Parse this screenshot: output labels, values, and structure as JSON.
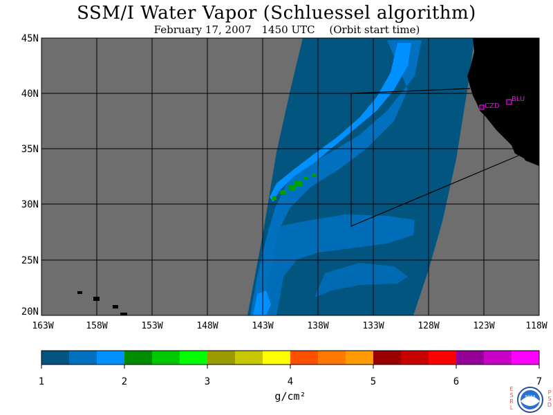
{
  "header": {
    "title": "SSM/I Water Vapor (Schluessel algorithm)",
    "date": "February 17, 2007",
    "time": "1450 UTC",
    "orbit_note": "(Orbit start time)"
  },
  "map": {
    "lat_labels": [
      "45N",
      "40N",
      "35N",
      "30N",
      "25N",
      "20N"
    ],
    "lon_labels": [
      "163W",
      "158W",
      "153W",
      "148W",
      "143W",
      "138W",
      "133W",
      "128W",
      "123W",
      "118W"
    ],
    "stations": [
      {
        "id": "CZD",
        "label": "CZD"
      },
      {
        "id": "BLU",
        "label": "BLU"
      }
    ],
    "colors": {
      "land": "#000000",
      "no_data": "#6e6e6e",
      "swath_base": "#02557f",
      "moist_band": "#0070bf",
      "moist_core": "#0090ff",
      "high_pocket": "#00a000",
      "station_marker": "#ff00ff",
      "grid": "#000000"
    }
  },
  "colorbar": {
    "tick_labels": [
      "1",
      "2",
      "3",
      "4",
      "5",
      "6",
      "7"
    ],
    "units": "g/cm²",
    "colors": [
      "#02557f",
      "#0070bf",
      "#0090ff",
      "#008c00",
      "#00c800",
      "#00ff00",
      "#9b9b00",
      "#c8c800",
      "#ffff00",
      "#ff5000",
      "#ff7800",
      "#ff9b00",
      "#9b0000",
      "#c80000",
      "#ff0000",
      "#960096",
      "#c800c8",
      "#ff00ff"
    ]
  },
  "logo": {
    "left_text": "ESRL",
    "right_text": "PSD",
    "center_text": "NOAA"
  }
}
